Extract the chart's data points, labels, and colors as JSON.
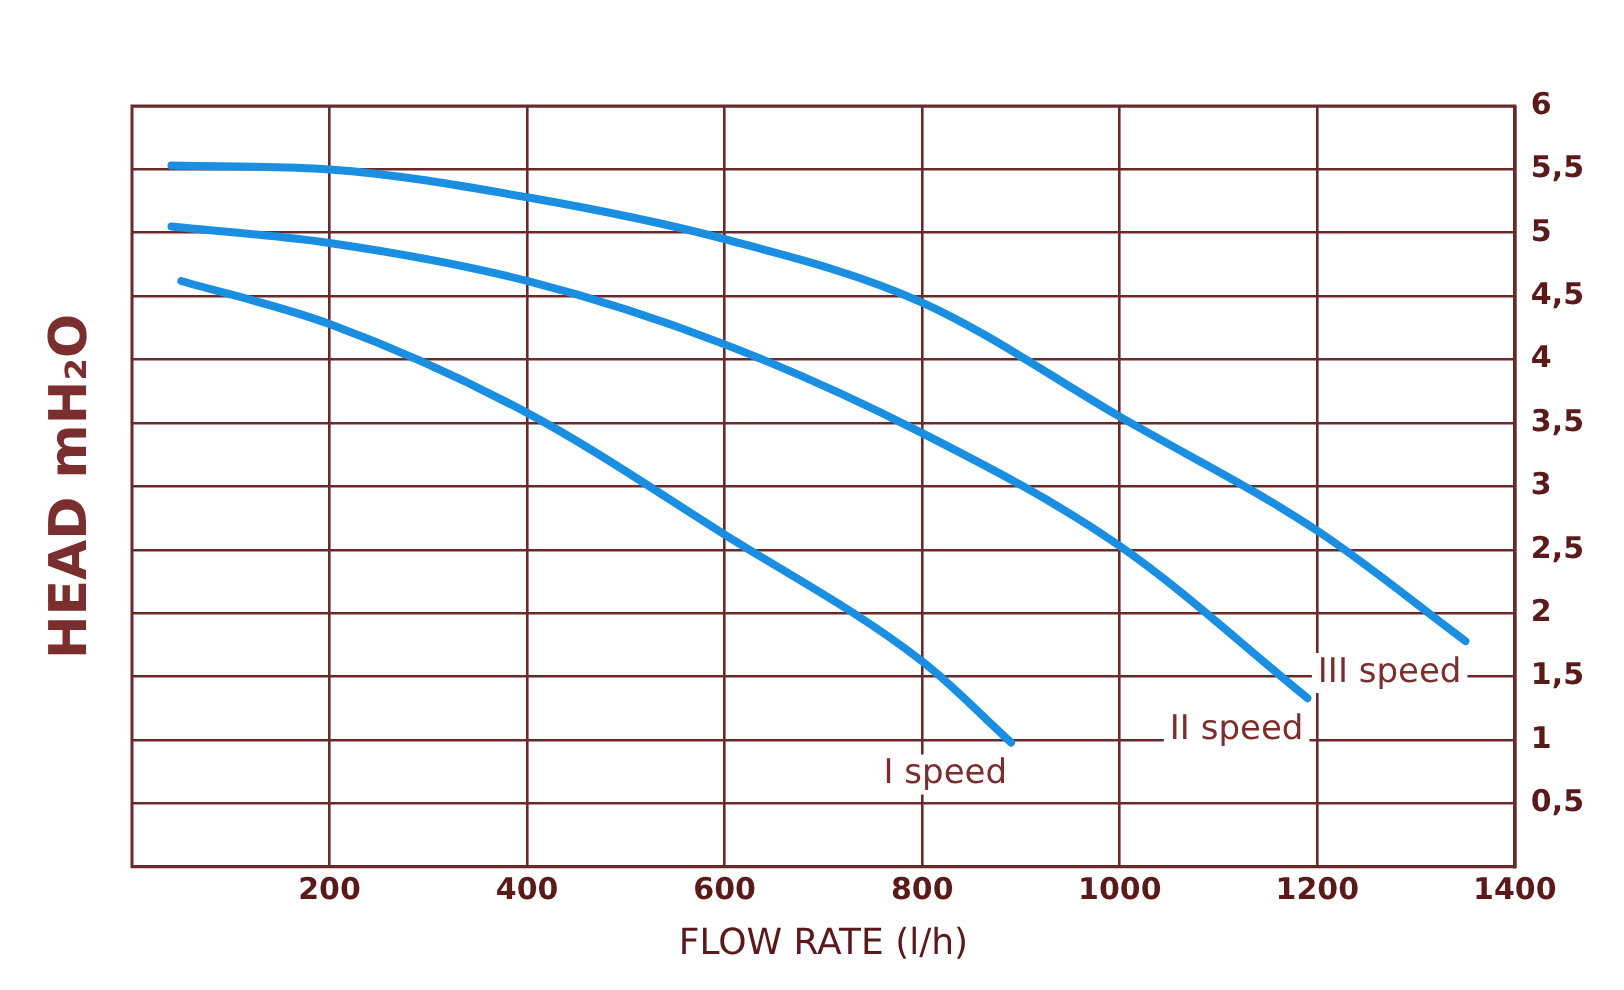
{
  "chart_data": {
    "type": "line",
    "xlabel": "FLOW RATE (l/h)",
    "ylabel": "HEAD mH₂O",
    "xlim": [
      0,
      1400
    ],
    "xticks": [
      200,
      400,
      600,
      800,
      1000,
      1200,
      1400
    ],
    "ylim": [
      0,
      6
    ],
    "yticks": [
      {
        "value": 0.5,
        "label": "0,5"
      },
      1,
      {
        "value": 1.5,
        "label": "1,5"
      },
      2,
      {
        "value": 2.5,
        "label": "2,5"
      },
      3,
      {
        "value": 3.5,
        "label": "3,5"
      },
      4,
      {
        "value": 4.5,
        "label": "4,5"
      },
      5,
      {
        "value": 5.5,
        "label": "5,5"
      },
      6
    ],
    "grid": true,
    "legend": false,
    "marker": "none",
    "line_style": "solid",
    "series": [
      {
        "name": "I speed",
        "color": "#1a8ee0",
        "x": [
          50,
          200,
          400,
          600,
          800,
          890
        ],
        "values": [
          4.62,
          4.28,
          3.58,
          2.62,
          1.62,
          0.98
        ]
      },
      {
        "name": "II speed",
        "color": "#1a8ee0",
        "x": [
          40,
          200,
          400,
          600,
          800,
          1000,
          1190
        ],
        "values": [
          5.05,
          4.92,
          4.62,
          4.12,
          3.42,
          2.53,
          1.33
        ]
      },
      {
        "name": "III speed",
        "color": "#1a8ee0",
        "x": [
          40,
          200,
          400,
          600,
          800,
          1000,
          1200,
          1350
        ],
        "values": [
          5.53,
          5.5,
          5.28,
          4.95,
          4.45,
          3.55,
          2.65,
          1.78
        ]
      }
    ]
  }
}
